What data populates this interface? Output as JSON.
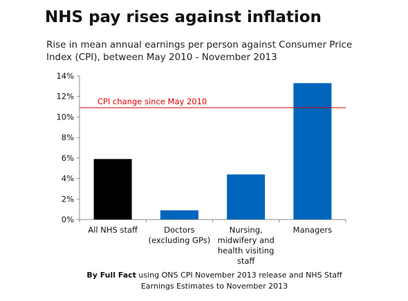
{
  "chart_data": {
    "type": "bar",
    "title": "NHS pay rises against inflation",
    "subtitle": "Rise in mean annual earnings per person against Consumer Price Index (CPI), between May 2010 - November 2013",
    "categories": [
      [
        "All NHS staff"
      ],
      [
        "Doctors",
        "(excluding GPs)"
      ],
      [
        "Nursing,",
        "midwifery and",
        "health visiting",
        "staff"
      ],
      [
        "Managers"
      ]
    ],
    "values": [
      5.9,
      0.9,
      4.4,
      13.3
    ],
    "bar_colors": [
      "#000000",
      "#0066bb",
      "#0066bb",
      "#0066bb"
    ],
    "yticks": [
      "0%",
      "2%",
      "4%",
      "6%",
      "8%",
      "10%",
      "12%",
      "14%"
    ],
    "ylim": [
      0,
      14
    ],
    "grid": false,
    "reference_line": {
      "label": "CPI change since May 2010",
      "value": 10.9,
      "color": "#dd0000"
    }
  },
  "source": {
    "by": "By Full Fact",
    "rest": " using ONS CPI November 2013 release and NHS Staff Earnings Estimates to November 2013"
  }
}
